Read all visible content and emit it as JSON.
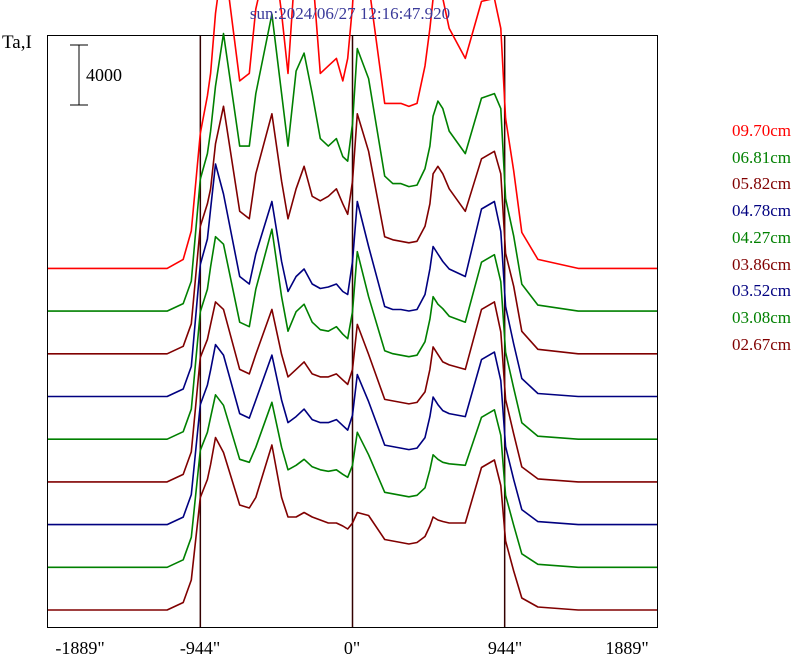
{
  "title": "sun:2024/06/27 12:16:47.920",
  "ylabel": "Ta,I",
  "scale_bar_label": "4000",
  "xticks": [
    "-1889\"",
    "-944\"",
    "0\"",
    "944\"",
    "1889\""
  ],
  "chart_data": {
    "type": "line",
    "title": "sun:2024/06/27 12:16:47.920",
    "xlabel": "",
    "ylabel": "Ta,I",
    "xlim": [
      -1889,
      1889
    ],
    "x_ticks": [
      -1889,
      -944,
      0,
      944,
      1889
    ],
    "vertical_lines": [
      -944,
      0,
      944
    ],
    "scale_bar": 4000,
    "offset_between_traces": 4000,
    "grid": false,
    "legend_position": "right",
    "series": [
      {
        "name": "09.70cm",
        "color": "#ff0000",
        "baseline": 0,
        "x": [
          -1889,
          -1400,
          -1150,
          -1050,
          -1000,
          -944,
          -900,
          -880,
          -850,
          -800,
          -700,
          -640,
          -600,
          -500,
          -440,
          -400,
          -350,
          -300,
          -250,
          -200,
          -150,
          -100,
          -60,
          -30,
          0,
          30,
          100,
          200,
          250,
          300,
          350,
          400,
          450,
          480,
          500,
          530,
          560,
          600,
          700,
          800,
          880,
          920,
          950,
          1000,
          1050,
          1150,
          1400,
          1889
        ],
        "y": [
          0,
          0,
          0,
          600,
          2500,
          9000,
          11500,
          13000,
          17000,
          21000,
          12500,
          13000,
          17300,
          22000,
          17000,
          13000,
          21000,
          24000,
          20000,
          13000,
          13500,
          14000,
          12500,
          14000,
          17500,
          23000,
          19000,
          11000,
          11000,
          11000,
          10800,
          11000,
          13500,
          16000,
          18000,
          19000,
          18000,
          16000,
          14000,
          17800,
          18000,
          16000,
          10000,
          6500,
          2400,
          600,
          0,
          0
        ]
      },
      {
        "name": "06.81cm",
        "color": "#008000",
        "baseline": 0,
        "x": [
          -1889,
          -1400,
          -1150,
          -1050,
          -1000,
          -944,
          -900,
          -880,
          -850,
          -800,
          -700,
          -640,
          -600,
          -500,
          -440,
          -400,
          -350,
          -300,
          -250,
          -200,
          -150,
          -100,
          -60,
          -30,
          0,
          30,
          100,
          200,
          250,
          300,
          350,
          400,
          450,
          480,
          500,
          530,
          560,
          600,
          700,
          800,
          880,
          920,
          950,
          1000,
          1050,
          1150,
          1400,
          1889
        ],
        "y": [
          0,
          0,
          0,
          500,
          2000,
          8800,
          10500,
          12000,
          15000,
          18500,
          11000,
          11000,
          14500,
          19800,
          14500,
          11000,
          16000,
          17200,
          14500,
          11500,
          11000,
          11500,
          10300,
          10000,
          12500,
          17500,
          15500,
          9000,
          8500,
          8500,
          8300,
          8400,
          9500,
          11000,
          13000,
          14000,
          13500,
          12000,
          10500,
          14200,
          14500,
          13500,
          7500,
          5000,
          1800,
          400,
          0,
          0
        ]
      },
      {
        "name": "05.82cm",
        "color": "#800000",
        "baseline": 0,
        "x": [
          -1889,
          -1400,
          -1150,
          -1050,
          -1000,
          -944,
          -900,
          -880,
          -850,
          -800,
          -700,
          -640,
          -600,
          -500,
          -440,
          -400,
          -350,
          -300,
          -250,
          -200,
          -150,
          -100,
          -60,
          -30,
          0,
          30,
          100,
          200,
          250,
          300,
          350,
          400,
          450,
          480,
          500,
          530,
          560,
          600,
          700,
          800,
          880,
          920,
          950,
          1000,
          1050,
          1150,
          1400,
          1889
        ],
        "y": [
          0,
          0,
          0,
          500,
          2000,
          8500,
          10000,
          11000,
          14000,
          16500,
          9500,
          9000,
          12000,
          16000,
          11500,
          9000,
          11000,
          12500,
          10500,
          10200,
          10500,
          11000,
          10000,
          9300,
          11500,
          16000,
          13500,
          7800,
          7600,
          7500,
          7400,
          7500,
          8500,
          10000,
          12000,
          12500,
          12000,
          11000,
          9500,
          13000,
          13500,
          12000,
          6700,
          4500,
          1500,
          300,
          0,
          0
        ]
      },
      {
        "name": "04.78cm",
        "color": "#000080",
        "baseline": 0,
        "x": [
          -1889,
          -1400,
          -1150,
          -1050,
          -1000,
          -944,
          -900,
          -880,
          -850,
          -800,
          -700,
          -640,
          -600,
          -500,
          -440,
          -400,
          -350,
          -300,
          -250,
          -200,
          -150,
          -100,
          -60,
          -30,
          0,
          30,
          100,
          200,
          250,
          300,
          350,
          400,
          450,
          480,
          500,
          530,
          560,
          600,
          700,
          800,
          880,
          920,
          950,
          1000,
          1050,
          1150,
          1400,
          1889
        ],
        "y": [
          0,
          0,
          0,
          500,
          2000,
          8800,
          10500,
          12500,
          15500,
          13500,
          8000,
          7500,
          9500,
          13000,
          9000,
          7000,
          8000,
          8500,
          7500,
          7200,
          7300,
          7500,
          7000,
          6800,
          9000,
          13000,
          10000,
          6000,
          5800,
          5800,
          5700,
          5800,
          6800,
          8500,
          10000,
          9500,
          9000,
          8500,
          8000,
          12500,
          13000,
          11000,
          6000,
          3500,
          1200,
          200,
          0,
          0
        ]
      },
      {
        "name": "04.27cm",
        "color": "#008000",
        "baseline": 0,
        "x": [
          -1889,
          -1400,
          -1150,
          -1050,
          -1000,
          -944,
          -900,
          -880,
          -850,
          -800,
          -700,
          -640,
          -600,
          -500,
          -440,
          -400,
          -350,
          -300,
          -250,
          -200,
          -150,
          -100,
          -60,
          -30,
          0,
          30,
          100,
          200,
          250,
          300,
          350,
          400,
          450,
          480,
          500,
          530,
          560,
          600,
          700,
          800,
          880,
          920,
          950,
          1000,
          1050,
          1150,
          1400,
          1889
        ],
        "y": [
          0,
          0,
          0,
          500,
          2000,
          8500,
          10000,
          11500,
          13500,
          13000,
          7800,
          7500,
          10000,
          14000,
          9500,
          7200,
          8500,
          9000,
          7800,
          7300,
          7200,
          7500,
          7000,
          6700,
          8500,
          12500,
          9500,
          5900,
          5700,
          5600,
          5500,
          5600,
          6500,
          8000,
          9500,
          9000,
          8700,
          8200,
          7800,
          11800,
          12300,
          10500,
          5800,
          3400,
          1100,
          200,
          0,
          0
        ]
      },
      {
        "name": "03.86cm",
        "color": "#800000",
        "baseline": 0,
        "x": [
          -1889,
          -1400,
          -1150,
          -1050,
          -1000,
          -944,
          -900,
          -880,
          -850,
          -800,
          -700,
          -640,
          -600,
          -500,
          -440,
          -400,
          -350,
          -300,
          -250,
          -200,
          -150,
          -100,
          -60,
          -30,
          0,
          30,
          100,
          200,
          250,
          300,
          350,
          400,
          450,
          480,
          500,
          530,
          560,
          600,
          700,
          800,
          880,
          920,
          950,
          1000,
          1050,
          1150,
          1400,
          1889
        ],
        "y": [
          0,
          0,
          0,
          500,
          2000,
          8300,
          9500,
          10500,
          12000,
          11500,
          7500,
          7200,
          8500,
          11500,
          8500,
          7000,
          7500,
          8000,
          7200,
          7000,
          7000,
          7200,
          6800,
          6500,
          7500,
          10500,
          8500,
          5500,
          5400,
          5300,
          5200,
          5300,
          6000,
          7500,
          9000,
          8500,
          8000,
          7800,
          7500,
          11500,
          12000,
          10000,
          5500,
          3200,
          1000,
          200,
          0,
          0
        ]
      },
      {
        "name": "03.52cm",
        "color": "#000080",
        "baseline": 0,
        "x": [
          -1889,
          -1400,
          -1150,
          -1050,
          -1000,
          -944,
          -900,
          -880,
          -850,
          -800,
          -700,
          -640,
          -600,
          -500,
          -440,
          -400,
          -350,
          -300,
          -250,
          -200,
          -150,
          -100,
          -60,
          -30,
          0,
          30,
          100,
          200,
          250,
          300,
          350,
          400,
          450,
          480,
          500,
          530,
          560,
          600,
          700,
          800,
          880,
          920,
          950,
          1000,
          1050,
          1150,
          1400,
          1889
        ],
        "y": [
          0,
          0,
          0,
          500,
          2000,
          8000,
          9300,
          10300,
          12000,
          11300,
          7400,
          7100,
          8300,
          11300,
          8300,
          6800,
          7200,
          7700,
          7000,
          6800,
          6800,
          7000,
          6600,
          6300,
          7300,
          10000,
          8200,
          5300,
          5200,
          5100,
          5000,
          5100,
          5800,
          7200,
          8500,
          8000,
          7600,
          7400,
          7200,
          11000,
          11500,
          9600,
          5200,
          3000,
          1000,
          200,
          0,
          0
        ]
      },
      {
        "name": "03.08cm",
        "color": "#008000",
        "baseline": 0,
        "x": [
          -1889,
          -1400,
          -1150,
          -1050,
          -1000,
          -944,
          -900,
          -880,
          -850,
          -800,
          -700,
          -640,
          -600,
          -500,
          -440,
          -400,
          -350,
          -300,
          -250,
          -200,
          -150,
          -100,
          -60,
          -30,
          0,
          30,
          100,
          200,
          250,
          300,
          350,
          400,
          450,
          480,
          500,
          530,
          560,
          600,
          700,
          800,
          880,
          920,
          950,
          1000,
          1050,
          1150,
          1400,
          1889
        ],
        "y": [
          0,
          0,
          0,
          500,
          2000,
          7800,
          9000,
          10000,
          11500,
          10800,
          7200,
          7000,
          8000,
          11000,
          8000,
          6500,
          6800,
          7200,
          6700,
          6500,
          6400,
          6500,
          6200,
          6000,
          6800,
          9000,
          7500,
          5000,
          4900,
          4800,
          4700,
          4800,
          5300,
          6500,
          7500,
          7200,
          7000,
          6900,
          6800,
          10000,
          10500,
          8800,
          4800,
          2800,
          900,
          200,
          0,
          0
        ]
      },
      {
        "name": "02.67cm",
        "color": "#800000",
        "baseline": 0,
        "x": [
          -1889,
          -1400,
          -1150,
          -1050,
          -1000,
          -944,
          -900,
          -880,
          -850,
          -800,
          -700,
          -640,
          -600,
          -500,
          -440,
          -400,
          -350,
          -300,
          -250,
          -200,
          -150,
          -100,
          -60,
          -30,
          0,
          30,
          100,
          200,
          250,
          300,
          350,
          400,
          450,
          480,
          500,
          530,
          560,
          600,
          700,
          800,
          880,
          920,
          950,
          1000,
          1050,
          1150,
          1400,
          1889
        ],
        "y": [
          0,
          0,
          0,
          500,
          2000,
          7500,
          8700,
          9700,
          11500,
          10500,
          7000,
          6800,
          7500,
          11000,
          7500,
          6200,
          6200,
          6500,
          6200,
          6000,
          5800,
          5800,
          5600,
          5400,
          5800,
          6500,
          6300,
          4700,
          4600,
          4500,
          4400,
          4500,
          4900,
          5600,
          6200,
          6000,
          5900,
          5800,
          5800,
          9500,
          10000,
          8300,
          4600,
          2600,
          800,
          200,
          0,
          0
        ]
      }
    ]
  }
}
